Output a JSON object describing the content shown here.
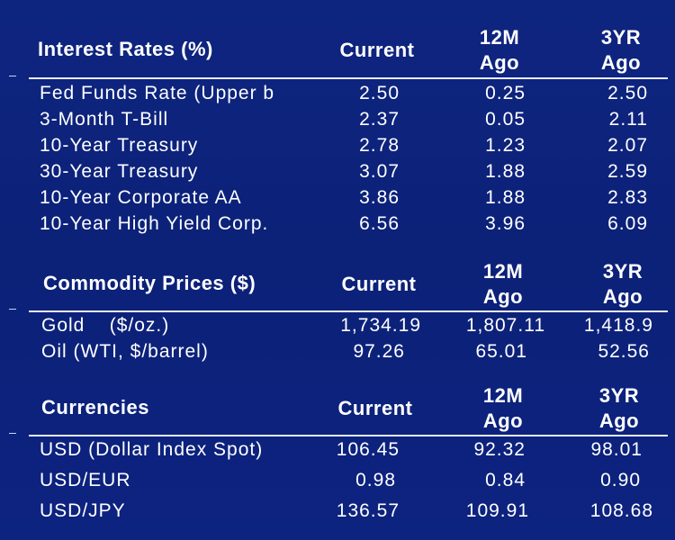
{
  "interest_rates": {
    "title": "Interest Rates (%)",
    "col_current": "Current",
    "col_12m_line1": "12M",
    "col_12m_line2": "Ago",
    "col_3yr_line1": "3YR",
    "col_3yr_line2": "Ago",
    "rows": [
      {
        "label": "Fed Funds Rate (Upper b",
        "current": "2.50",
        "m12": "0.25",
        "yr3": "2.50"
      },
      {
        "label": "3-Month T-Bill",
        "current": "2.37",
        "m12": "0.05",
        "yr3": "2.11"
      },
      {
        "label": "10-Year Treasury",
        "current": "2.78",
        "m12": "1.23",
        "yr3": "2.07"
      },
      {
        "label": "30-Year Treasury",
        "current": "3.07",
        "m12": "1.88",
        "yr3": "2.59"
      },
      {
        "label": "10-Year Corporate AA",
        "current": "3.86",
        "m12": "1.88",
        "yr3": "2.83"
      },
      {
        "label": "10-Year High Yield Corp.",
        "current": "6.56",
        "m12": "3.96",
        "yr3": "6.09"
      }
    ]
  },
  "commodities": {
    "title": "Commodity Prices ($)",
    "col_current": "Current",
    "col_12m_line1": "12M",
    "col_12m_line2": "Ago",
    "col_3yr_line1": "3YR",
    "col_3yr_line2": "Ago",
    "rows": [
      {
        "label": "Gold    ($/oz.)",
        "current": "1,734.19",
        "m12": "1,807.11",
        "yr3": "1,418.9"
      },
      {
        "label": "Oil (WTI, $/barrel)",
        "current": "97.26",
        "m12": "65.01",
        "yr3": "52.56"
      }
    ]
  },
  "currencies": {
    "title": "Currencies",
    "col_current": "Current",
    "col_12m_line1": "12M",
    "col_12m_line2": "Ago",
    "col_3yr_line1": "3YR",
    "col_3yr_line2": "Ago",
    "rows": [
      {
        "label": "USD (Dollar Index Spot)",
        "current": "106.45",
        "m12": "92.32",
        "yr3": "98.01"
      },
      {
        "label": "USD/EUR",
        "current": "0.98",
        "m12": "0.84",
        "yr3": "0.90"
      },
      {
        "label": "USD/JPY",
        "current": "136.57",
        "m12": "109.91",
        "yr3": "108.68"
      }
    ]
  }
}
